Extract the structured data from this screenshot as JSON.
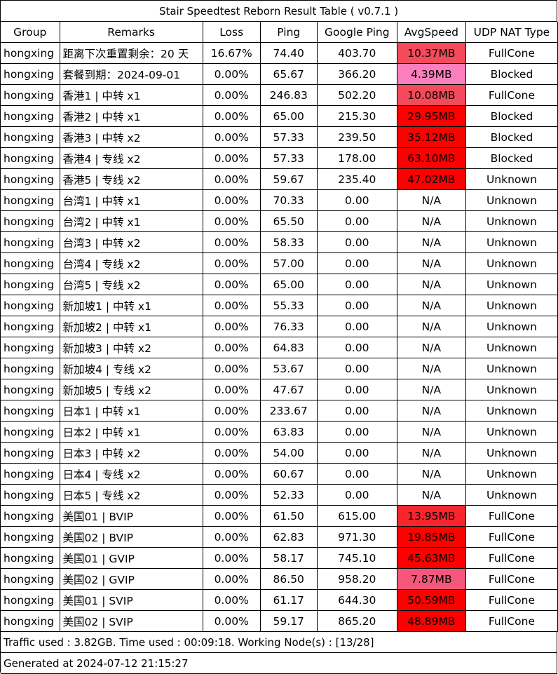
{
  "title": "Stair Speedtest Reborn Result Table ( v0.7.1 )",
  "headers": [
    "Group",
    "Remarks",
    "Loss",
    "Ping",
    "Google Ping",
    "AvgSpeed",
    "UDP NAT Type"
  ],
  "rows": [
    {
      "group": "hongxing",
      "remarks": "距离下次重置剩余：20 天",
      "loss": "16.67%",
      "ping": "74.40",
      "gping": "403.70",
      "speed": "10.37MB",
      "nat": "FullCone",
      "speed_bg": "#f44a5a"
    },
    {
      "group": "hongxing",
      "remarks": "套餐到期：2024-09-01",
      "loss": "0.00%",
      "ping": "65.67",
      "gping": "366.20",
      "speed": "4.39MB",
      "nat": "Blocked",
      "speed_bg": "#fc7fbd"
    },
    {
      "group": "hongxing",
      "remarks": "香港1 | 中转 x1",
      "loss": "0.00%",
      "ping": "246.83",
      "gping": "502.20",
      "speed": "10.08MB",
      "nat": "FullCone",
      "speed_bg": "#f44a5a"
    },
    {
      "group": "hongxing",
      "remarks": "香港2 | 中转 x1",
      "loss": "0.00%",
      "ping": "65.00",
      "gping": "215.30",
      "speed": "29.95MB",
      "nat": "Blocked",
      "speed_bg": "#ff0000"
    },
    {
      "group": "hongxing",
      "remarks": "香港3 | 中转 x2",
      "loss": "0.00%",
      "ping": "57.33",
      "gping": "239.50",
      "speed": "35.12MB",
      "nat": "Blocked",
      "speed_bg": "#ff0000"
    },
    {
      "group": "hongxing",
      "remarks": "香港4 | 专线 x2",
      "loss": "0.00%",
      "ping": "57.33",
      "gping": "178.00",
      "speed": "63.10MB",
      "nat": "Blocked",
      "speed_bg": "#ff0000"
    },
    {
      "group": "hongxing",
      "remarks": "香港5 | 专线 x2",
      "loss": "0.00%",
      "ping": "59.67",
      "gping": "235.40",
      "speed": "47.02MB",
      "nat": "Unknown",
      "speed_bg": "#ff0000"
    },
    {
      "group": "hongxing",
      "remarks": "台湾1 | 中转 x1",
      "loss": "0.00%",
      "ping": "70.33",
      "gping": "0.00",
      "speed": "N/A",
      "nat": "Unknown",
      "speed_bg": ""
    },
    {
      "group": "hongxing",
      "remarks": "台湾2 | 中转 x1",
      "loss": "0.00%",
      "ping": "65.50",
      "gping": "0.00",
      "speed": "N/A",
      "nat": "Unknown",
      "speed_bg": ""
    },
    {
      "group": "hongxing",
      "remarks": "台湾3 | 中转 x2",
      "loss": "0.00%",
      "ping": "58.33",
      "gping": "0.00",
      "speed": "N/A",
      "nat": "Unknown",
      "speed_bg": ""
    },
    {
      "group": "hongxing",
      "remarks": "台湾4 | 专线 x2",
      "loss": "0.00%",
      "ping": "57.00",
      "gping": "0.00",
      "speed": "N/A",
      "nat": "Unknown",
      "speed_bg": ""
    },
    {
      "group": "hongxing",
      "remarks": "台湾5 | 专线 x2",
      "loss": "0.00%",
      "ping": "65.00",
      "gping": "0.00",
      "speed": "N/A",
      "nat": "Unknown",
      "speed_bg": ""
    },
    {
      "group": "hongxing",
      "remarks": "新加坡1 | 中转 x1",
      "loss": "0.00%",
      "ping": "55.33",
      "gping": "0.00",
      "speed": "N/A",
      "nat": "Unknown",
      "speed_bg": ""
    },
    {
      "group": "hongxing",
      "remarks": "新加坡2 | 中转 x1",
      "loss": "0.00%",
      "ping": "76.33",
      "gping": "0.00",
      "speed": "N/A",
      "nat": "Unknown",
      "speed_bg": ""
    },
    {
      "group": "hongxing",
      "remarks": "新加坡3 | 中转 x2",
      "loss": "0.00%",
      "ping": "64.83",
      "gping": "0.00",
      "speed": "N/A",
      "nat": "Unknown",
      "speed_bg": ""
    },
    {
      "group": "hongxing",
      "remarks": "新加坡4 | 专线 x2",
      "loss": "0.00%",
      "ping": "53.67",
      "gping": "0.00",
      "speed": "N/A",
      "nat": "Unknown",
      "speed_bg": ""
    },
    {
      "group": "hongxing",
      "remarks": "新加坡5 | 专线 x2",
      "loss": "0.00%",
      "ping": "47.67",
      "gping": "0.00",
      "speed": "N/A",
      "nat": "Unknown",
      "speed_bg": ""
    },
    {
      "group": "hongxing",
      "remarks": "日本1 | 中转 x1",
      "loss": "0.00%",
      "ping": "233.67",
      "gping": "0.00",
      "speed": "N/A",
      "nat": "Unknown",
      "speed_bg": ""
    },
    {
      "group": "hongxing",
      "remarks": "日本2 | 中转 x1",
      "loss": "0.00%",
      "ping": "63.83",
      "gping": "0.00",
      "speed": "N/A",
      "nat": "Unknown",
      "speed_bg": ""
    },
    {
      "group": "hongxing",
      "remarks": "日本3 | 中转 x2",
      "loss": "0.00%",
      "ping": "54.00",
      "gping": "0.00",
      "speed": "N/A",
      "nat": "Unknown",
      "speed_bg": ""
    },
    {
      "group": "hongxing",
      "remarks": "日本4 | 专线 x2",
      "loss": "0.00%",
      "ping": "60.67",
      "gping": "0.00",
      "speed": "N/A",
      "nat": "Unknown",
      "speed_bg": ""
    },
    {
      "group": "hongxing",
      "remarks": "日本5 | 专线 x2",
      "loss": "0.00%",
      "ping": "52.33",
      "gping": "0.00",
      "speed": "N/A",
      "nat": "Unknown",
      "speed_bg": ""
    },
    {
      "group": "hongxing",
      "remarks": "美国01 | BVIP",
      "loss": "0.00%",
      "ping": "61.50",
      "gping": "615.00",
      "speed": "13.95MB",
      "nat": "FullCone",
      "speed_bg": "#f8252d"
    },
    {
      "group": "hongxing",
      "remarks": "美国02 | BVIP",
      "loss": "0.00%",
      "ping": "62.83",
      "gping": "971.30",
      "speed": "19.85MB",
      "nat": "FullCone",
      "speed_bg": "#ff0000"
    },
    {
      "group": "hongxing",
      "remarks": "美国01 | GVIP",
      "loss": "0.00%",
      "ping": "58.17",
      "gping": "745.10",
      "speed": "45.63MB",
      "nat": "FullCone",
      "speed_bg": "#ff0000"
    },
    {
      "group": "hongxing",
      "remarks": "美国02 | GVIP",
      "loss": "0.00%",
      "ping": "86.50",
      "gping": "958.20",
      "speed": "7.87MB",
      "nat": "FullCone",
      "speed_bg": "#f4577a"
    },
    {
      "group": "hongxing",
      "remarks": "美国01 | SVIP",
      "loss": "0.00%",
      "ping": "61.17",
      "gping": "644.30",
      "speed": "50.59MB",
      "nat": "FullCone",
      "speed_bg": "#ff0000"
    },
    {
      "group": "hongxing",
      "remarks": "美国02 | SVIP",
      "loss": "0.00%",
      "ping": "59.17",
      "gping": "865.20",
      "speed": "48.89MB",
      "nat": "FullCone",
      "speed_bg": "#ff0000"
    }
  ],
  "footer": {
    "traffic": "Traffic used : 3.82GB. Time used : 00:09:18. Working Node(s) : [13/28]",
    "generated": "Generated at 2024-07-12 21:15:27"
  }
}
